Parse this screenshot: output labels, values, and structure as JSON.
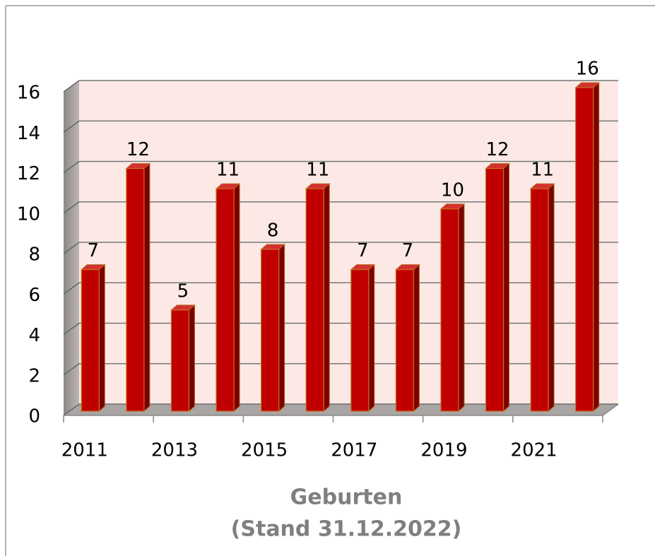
{
  "chart_data": {
    "type": "bar3d",
    "title": "Geburten",
    "subtitle": "(Stand 31.12.2022)",
    "categories": [
      "2011",
      null,
      "2013",
      null,
      "2015",
      null,
      "2017",
      null,
      "2019",
      null,
      "2021",
      null
    ],
    "values": [
      7,
      12,
      5,
      11,
      8,
      11,
      7,
      7,
      10,
      12,
      11,
      16
    ],
    "color": "#c00000",
    "ylim": [
      0,
      16
    ],
    "yticks": [
      0,
      2,
      4,
      6,
      8,
      10,
      12,
      14,
      16
    ],
    "grid": true
  }
}
